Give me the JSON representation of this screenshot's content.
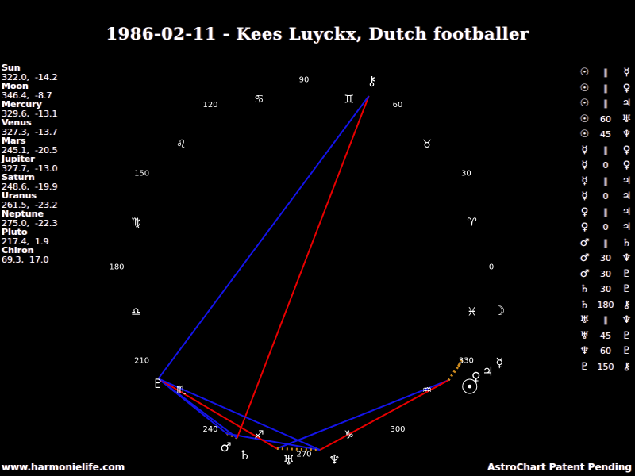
{
  "title": "1986-02-11 - Kees Luyckx, Dutch footballer",
  "footer": {
    "watermark": "www.harmonielife.com",
    "patent": "AstroChart Patent Pending"
  },
  "colors": {
    "background": "#000000",
    "text": "#ffffff",
    "hard_aspect_line": "#e80000",
    "soft_aspect_line": "#1414e8",
    "conjunction_parallel_dotted": "#cc8a1e"
  },
  "chart_data": {
    "type": "astro-wheel",
    "description": "Natal chart wheel; ecliptic longitude 0 at right, increasing counterclockwise; planets listed as longitude, declination",
    "degree_labels": [
      "0",
      "30",
      "60",
      "90",
      "120",
      "150",
      "180",
      "210",
      "240",
      "270",
      "300",
      "330"
    ],
    "zodiac_signs": [
      {
        "name": "aries",
        "glyph": "♈"
      },
      {
        "name": "taurus",
        "glyph": "♉"
      },
      {
        "name": "gemini",
        "glyph": "♊"
      },
      {
        "name": "cancer",
        "glyph": "♋"
      },
      {
        "name": "leo",
        "glyph": "♌"
      },
      {
        "name": "virgo",
        "glyph": "♍"
      },
      {
        "name": "libra",
        "glyph": "♎"
      },
      {
        "name": "scorpio",
        "glyph": "♏"
      },
      {
        "name": "sagittarius",
        "glyph": "♐"
      },
      {
        "name": "capricorn",
        "glyph": "♑"
      },
      {
        "name": "aquarius",
        "glyph": "♒"
      },
      {
        "name": "pisces",
        "glyph": "♓"
      }
    ],
    "planets": [
      {
        "name": "Sun",
        "glyph": "☉",
        "lon": 322.0,
        "decl": -14.2
      },
      {
        "name": "Moon",
        "glyph": "☽",
        "lon": 346.4,
        "decl": -8.7
      },
      {
        "name": "Mercury",
        "glyph": "☿",
        "lon": 329.6,
        "decl": -13.1
      },
      {
        "name": "Venus",
        "glyph": "♀",
        "lon": 327.3,
        "decl": -13.7
      },
      {
        "name": "Mars",
        "glyph": "♂",
        "lon": 245.1,
        "decl": -20.5
      },
      {
        "name": "Jupiter",
        "glyph": "♃",
        "lon": 327.7,
        "decl": -13.0
      },
      {
        "name": "Saturn",
        "glyph": "♄",
        "lon": 248.6,
        "decl": -19.9
      },
      {
        "name": "Uranus",
        "glyph": "♅",
        "lon": 261.5,
        "decl": -23.2
      },
      {
        "name": "Neptune",
        "glyph": "♆",
        "lon": 275.0,
        "decl": -22.3
      },
      {
        "name": "Pluto",
        "glyph": "♇",
        "lon": 217.4,
        "decl": 1.9
      },
      {
        "name": "Chiron",
        "glyph": "⚷",
        "lon": 69.3,
        "decl": 17.0
      }
    ],
    "aspects": [
      {
        "a": "Sun",
        "symbol": "∥",
        "b": "Mercury",
        "type": "parallel"
      },
      {
        "a": "Sun",
        "symbol": "∥",
        "b": "Venus",
        "type": "parallel"
      },
      {
        "a": "Sun",
        "symbol": "∥",
        "b": "Jupiter",
        "type": "parallel"
      },
      {
        "a": "Sun",
        "symbol": "60",
        "b": "Uranus",
        "type": "sextile"
      },
      {
        "a": "Sun",
        "symbol": "45",
        "b": "Neptune",
        "type": "semisquare"
      },
      {
        "a": "Mercury",
        "symbol": "∥",
        "b": "Venus",
        "type": "parallel"
      },
      {
        "a": "Mercury",
        "symbol": "0",
        "b": "Venus",
        "type": "conjunction"
      },
      {
        "a": "Mercury",
        "symbol": "∥",
        "b": "Jupiter",
        "type": "parallel"
      },
      {
        "a": "Mercury",
        "symbol": "0",
        "b": "Jupiter",
        "type": "conjunction"
      },
      {
        "a": "Venus",
        "symbol": "∥",
        "b": "Jupiter",
        "type": "parallel"
      },
      {
        "a": "Venus",
        "symbol": "0",
        "b": "Jupiter",
        "type": "conjunction"
      },
      {
        "a": "Mars",
        "symbol": "∥",
        "b": "Saturn",
        "type": "parallel"
      },
      {
        "a": "Mars",
        "symbol": "30",
        "b": "Neptune",
        "type": "semisextile"
      },
      {
        "a": "Mars",
        "symbol": "30",
        "b": "Pluto",
        "type": "semisextile"
      },
      {
        "a": "Saturn",
        "symbol": "30",
        "b": "Pluto",
        "type": "semisextile"
      },
      {
        "a": "Saturn",
        "symbol": "180",
        "b": "Chiron",
        "type": "opposition"
      },
      {
        "a": "Uranus",
        "symbol": "∥",
        "b": "Neptune",
        "type": "parallel"
      },
      {
        "a": "Uranus",
        "symbol": "45",
        "b": "Pluto",
        "type": "semisquare"
      },
      {
        "a": "Neptune",
        "symbol": "60",
        "b": "Pluto",
        "type": "sextile"
      },
      {
        "a": "Pluto",
        "symbol": "150",
        "b": "Chiron",
        "type": "quincunx"
      }
    ]
  }
}
